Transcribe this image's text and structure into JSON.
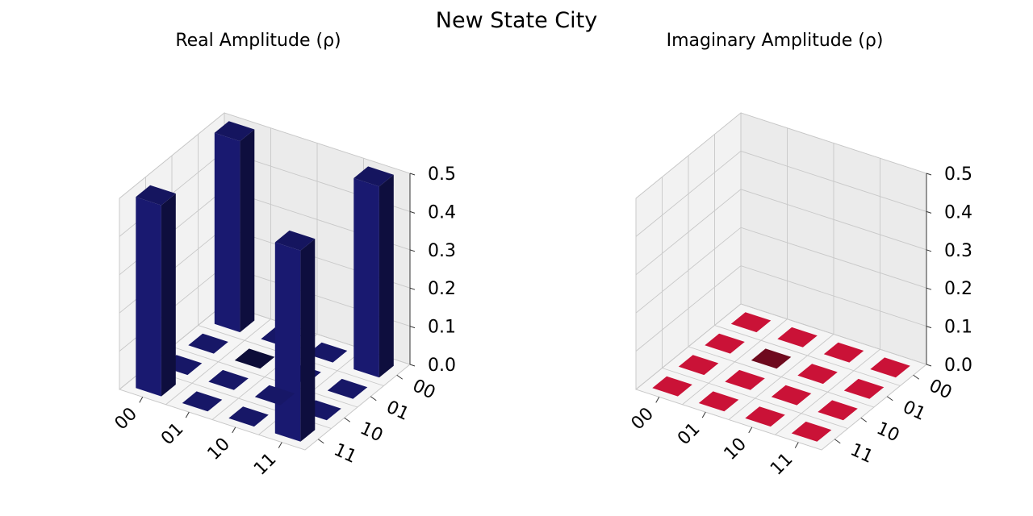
{
  "chart_data": {
    "type": "bar3d",
    "title": "New State City",
    "basis": [
      "00",
      "01",
      "10",
      "11"
    ],
    "zlim": [
      0,
      0.5
    ],
    "zticks": [
      "0.0",
      "0.1",
      "0.2",
      "0.3",
      "0.4",
      "0.5"
    ],
    "panels": [
      {
        "title": "Real Amplitude (ρ)",
        "color": "#191970",
        "matrix": [
          [
            0.5,
            0,
            0,
            0.5
          ],
          [
            0,
            0,
            0,
            0
          ],
          [
            0,
            0,
            0,
            0
          ],
          [
            0.5,
            0,
            0,
            0.5
          ]
        ]
      },
      {
        "title": "Imaginary Amplitude (ρ)",
        "color": "#dc143c",
        "matrix": [
          [
            0,
            0,
            0,
            0
          ],
          [
            0,
            0,
            0,
            0
          ],
          [
            0,
            0,
            0,
            0
          ],
          [
            0,
            0,
            0,
            0
          ]
        ]
      }
    ]
  }
}
